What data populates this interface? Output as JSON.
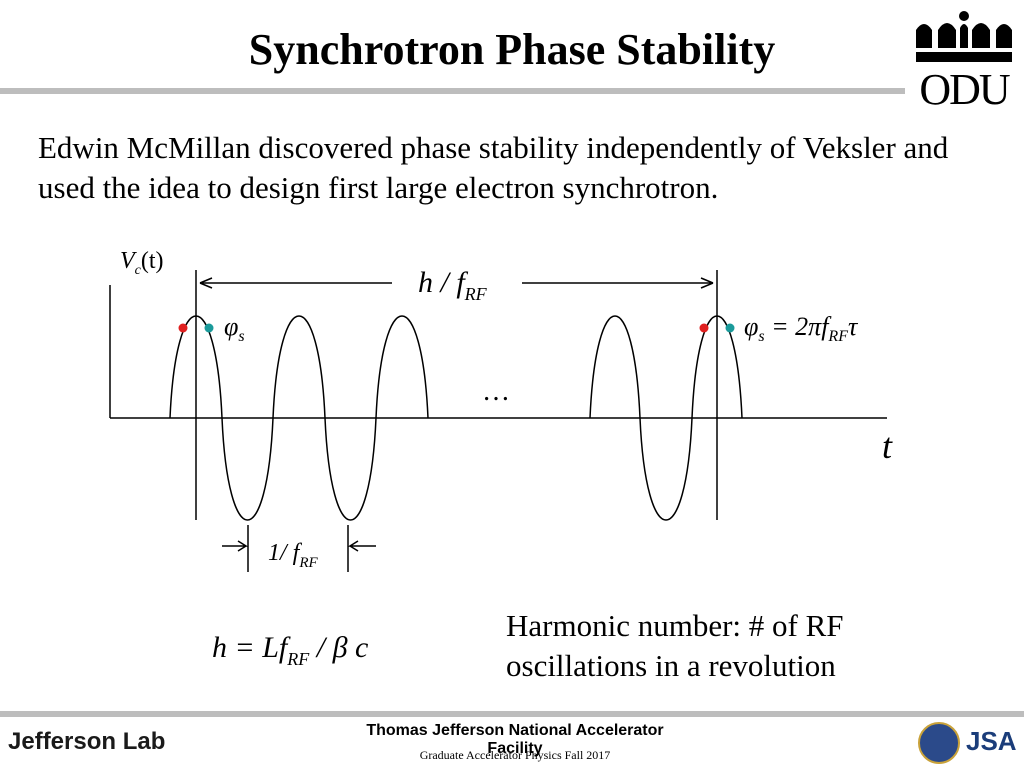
{
  "header": {
    "title": "Synchrotron Phase Stability",
    "logo": "ODU"
  },
  "body": {
    "text": "Edwin McMillan discovered phase stability independently of Veksler and used the idea to design first large electron synchrotron."
  },
  "diagram": {
    "y_label": {
      "main": "V",
      "sub": "c",
      "rest": "(t)"
    },
    "period_label": {
      "main": "h / f",
      "sub": "RF"
    },
    "x_label": "t",
    "ellipsis": "…",
    "phase_left": {
      "main": "φ",
      "sub": "s"
    },
    "phase_right": {
      "main": "φ",
      "sub": "s",
      "rest": " = 2πf",
      "sub2": "RF",
      "rest2": "τ"
    },
    "rf_period_label": {
      "main": "1/ f",
      "sub": "RF"
    }
  },
  "equation": {
    "main": "h = Lf",
    "sub": "RF",
    "rest": " / β c"
  },
  "note": "Harmonic number: # of RF oscillations in a revolution",
  "footer": {
    "lab": "Jefferson Lab",
    "facility": "Thomas Jefferson National Accelerator Facility",
    "course": "Graduate Accelerator Physics Fall 2017",
    "partner": "JSA"
  }
}
